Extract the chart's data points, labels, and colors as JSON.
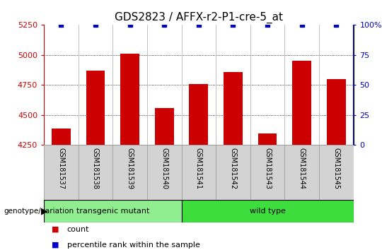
{
  "title": "GDS2823 / AFFX-r2-P1-cre-5_at",
  "samples": [
    "GSM181537",
    "GSM181538",
    "GSM181539",
    "GSM181540",
    "GSM181541",
    "GSM181542",
    "GSM181543",
    "GSM181544",
    "GSM181545"
  ],
  "counts": [
    4390,
    4870,
    5010,
    4560,
    4760,
    4860,
    4345,
    4950,
    4800
  ],
  "percentile_ranks": [
    100,
    100,
    100,
    100,
    100,
    100,
    100,
    100,
    100
  ],
  "ylim_left": [
    4250,
    5250
  ],
  "ylim_right": [
    0,
    100
  ],
  "yticks_left": [
    4250,
    4500,
    4750,
    5000,
    5250
  ],
  "yticks_right": [
    0,
    25,
    50,
    75,
    100
  ],
  "ytick_labels_right": [
    "0",
    "25",
    "50",
    "75",
    "100%"
  ],
  "bar_color": "#cc0000",
  "dot_color": "#0000cc",
  "transgenic_samples": 4,
  "wild_type_samples": 5,
  "transgenic_label": "transgenic mutant",
  "wild_type_label": "wild type",
  "genotype_label": "genotype/variation",
  "legend_count": "count",
  "legend_percentile": "percentile rank within the sample",
  "transgenic_color": "#90ee90",
  "wild_type_color": "#3ddd3d",
  "box_color": "#d3d3d3",
  "title_fontsize": 11,
  "tick_fontsize": 8,
  "bar_width": 0.55,
  "grid_dotted": [
    4500,
    4750,
    5000
  ],
  "grid_color": "black",
  "grid_lw": 0.6
}
